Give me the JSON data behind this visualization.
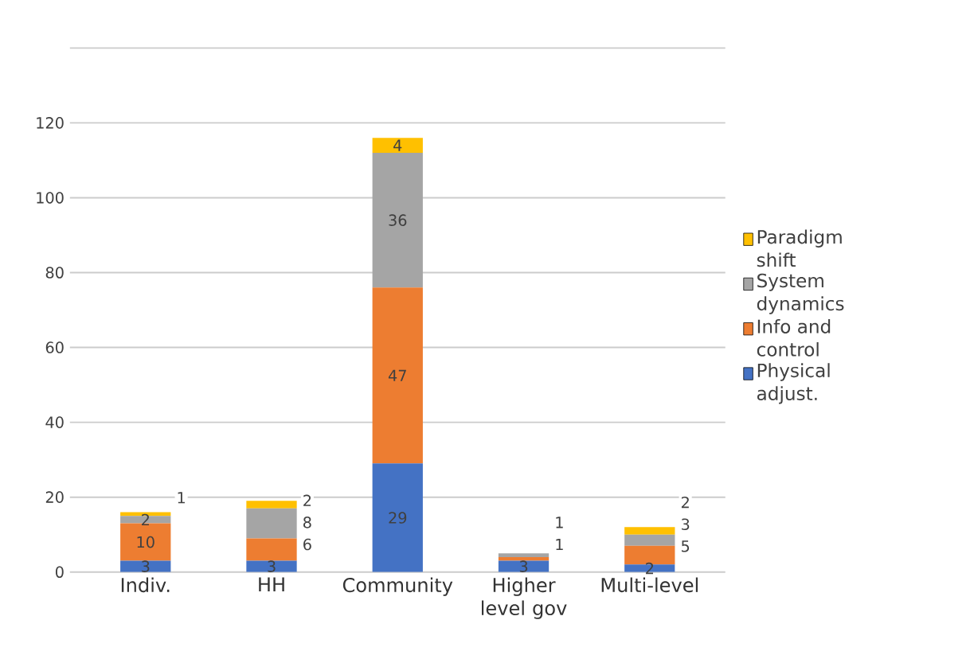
{
  "chart_data": {
    "type": "bar",
    "stacked": true,
    "categories": [
      "Indiv.",
      "HH",
      "Community",
      "Higher level gov",
      "Multi-level"
    ],
    "series": [
      {
        "name": "Physical adjust.",
        "color": "#4472c4",
        "values": [
          3,
          3,
          29,
          3,
          2
        ],
        "value_labels": [
          "3",
          "3",
          "29",
          "3",
          "2"
        ]
      },
      {
        "name": "Info and control",
        "color": "#ed7d31",
        "values": [
          10,
          6,
          47,
          1,
          5
        ],
        "value_labels": [
          "10",
          "6",
          "47",
          "1",
          "5"
        ]
      },
      {
        "name": "System dynamics",
        "color": "#a5a5a5",
        "values": [
          2,
          8,
          36,
          1,
          3
        ],
        "value_labels": [
          "2",
          "8",
          "36",
          "1",
          "3"
        ]
      },
      {
        "name": "Paradigm shift",
        "color": "#ffc000",
        "values": [
          1,
          2,
          4,
          0,
          2
        ],
        "value_labels": [
          "1",
          "2",
          "4",
          null,
          "2"
        ]
      }
    ],
    "ylim": [
      0,
      140
    ],
    "yticks": [
      0,
      20,
      40,
      60,
      80,
      100,
      120,
      {
        "value": 140,
        "label": null
      }
    ],
    "grid": "y",
    "legend": "right"
  }
}
